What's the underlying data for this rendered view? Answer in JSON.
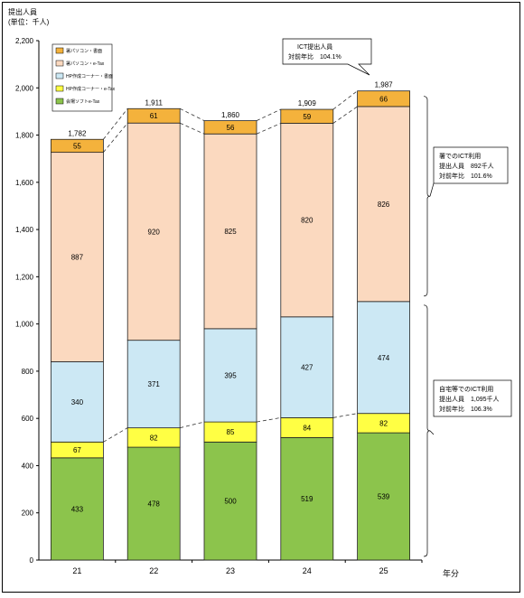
{
  "chart_data": {
    "type": "bar",
    "stacked": true,
    "y_title_line1": "提出人員",
    "y_title_line2": "(単位：千人)",
    "x_unit": "年分",
    "categories": [
      "21",
      "22",
      "23",
      "24",
      "25"
    ],
    "ylim": [
      0,
      2200
    ],
    "yticks": [
      "0",
      "200",
      "400",
      "600",
      "800",
      "1,000",
      "1,200",
      "1,400",
      "1,600",
      "1,800",
      "2,000",
      "2,200"
    ],
    "series": [
      {
        "name": "会場ソフトe-Tax",
        "color": "#8cc44c",
        "values": [
          433,
          478,
          500,
          519,
          539
        ],
        "labels": [
          "433",
          "478",
          "500",
          "519",
          "539"
        ]
      },
      {
        "name": "HP作成コーナー・e-Tax",
        "color": "#ffff44",
        "values": [
          67,
          82,
          85,
          84,
          82
        ],
        "labels": [
          "67",
          "82",
          "85",
          "84",
          "82"
        ]
      },
      {
        "name": "HP作成コーナー・書面",
        "color": "#cce8f4",
        "values": [
          340,
          371,
          395,
          427,
          474
        ],
        "labels": [
          "340",
          "371",
          "395",
          "427",
          "474"
        ]
      },
      {
        "name": "署パソコン・e-Tax",
        "color": "#fbd9bf",
        "values": [
          887,
          920,
          825,
          820,
          826
        ],
        "labels": [
          "887",
          "920",
          "825",
          "820",
          "826"
        ]
      },
      {
        "name": "署パソコン・書面",
        "color": "#f4b23c",
        "values": [
          55,
          61,
          56,
          59,
          66
        ],
        "labels": [
          "55",
          "61",
          "56",
          "59",
          "66"
        ]
      }
    ],
    "totals": [
      "1,782",
      "1,911",
      "1,860",
      "1,909",
      "1,987"
    ],
    "total_values": [
      1782,
      1911,
      1860,
      1909,
      1987
    ],
    "legend_position": "top-left",
    "grid": false
  },
  "callouts": {
    "total": {
      "line1": "ICT提出人員",
      "line2": "対前年比　104.1%"
    },
    "office": {
      "line1": "署でのICT利用",
      "line2": "提出人員　892千人",
      "line3": "対前年比　101.6%"
    },
    "home": {
      "line1": "自宅等でのICT利用",
      "line2": "提出人員　1,095千人",
      "line3": "対前年比　106.3%"
    }
  }
}
